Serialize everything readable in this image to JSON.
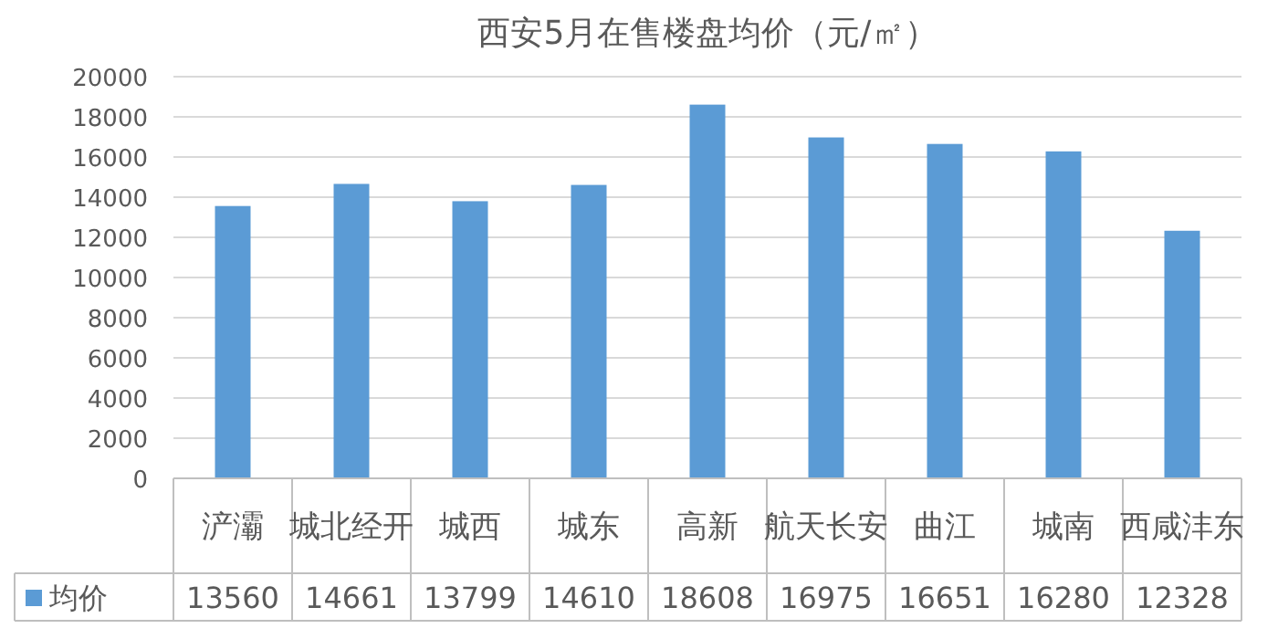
{
  "chart_data": {
    "type": "bar",
    "title": "西安5月在售楼盘均价（元/㎡）",
    "categories": [
      "浐灞",
      "城北经开",
      "城西",
      "城东",
      "高新",
      "航天长安",
      "曲江",
      "城南",
      "西咸沣东"
    ],
    "series": [
      {
        "name": "均价",
        "color": "#5b9bd5",
        "values": [
          13560,
          14661,
          13799,
          14610,
          18608,
          16975,
          16651,
          16280,
          12328
        ]
      }
    ],
    "ylim": [
      0,
      20000
    ],
    "yticks": [
      0,
      2000,
      4000,
      6000,
      8000,
      10000,
      12000,
      14000,
      16000,
      18000,
      20000
    ],
    "grid": "y",
    "data_labels": true,
    "legend": "bottom"
  }
}
